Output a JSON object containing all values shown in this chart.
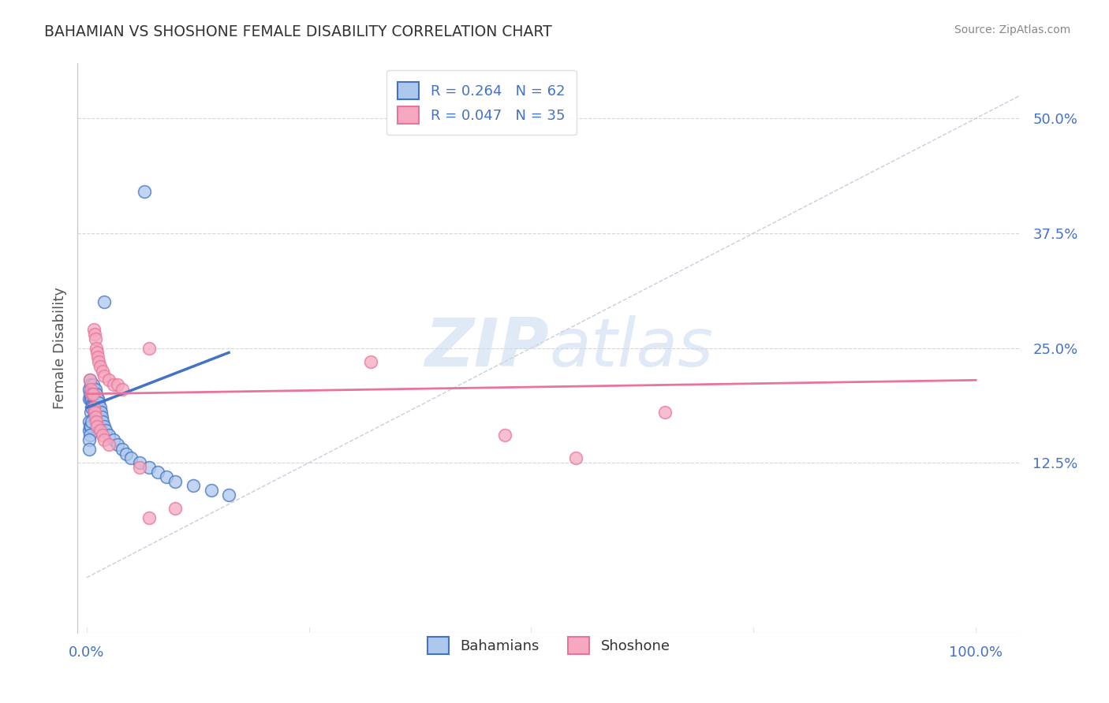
{
  "title": "BAHAMIAN VS SHOSHONE FEMALE DISABILITY CORRELATION CHART",
  "source_text": "Source: ZipAtlas.com",
  "ylabel": "Female Disability",
  "watermark_part1": "ZIP",
  "watermark_part2": "atlas",
  "legend_entries": [
    {
      "label": "Bahamians",
      "R": "0.264",
      "N": "62",
      "color": "#adc8ed",
      "line_color": "#4472c4"
    },
    {
      "label": "Shoshone",
      "R": "0.047",
      "N": "35",
      "color": "#f5a8c0",
      "line_color": "#e8749a"
    }
  ],
  "x_ticks": [
    0.0,
    0.25,
    0.5,
    0.75,
    1.0
  ],
  "x_tick_labels": [
    "0.0%",
    "",
    "",
    "",
    "100.0%"
  ],
  "y_ticks": [
    0.0,
    0.125,
    0.25,
    0.375,
    0.5
  ],
  "y_tick_labels": [
    "",
    "12.5%",
    "25.0%",
    "37.5%",
    "50.0%"
  ],
  "xlim": [
    -0.01,
    1.05
  ],
  "ylim": [
    -0.06,
    0.56
  ],
  "blue_scatter": [
    [
      0.003,
      0.205
    ],
    [
      0.003,
      0.195
    ],
    [
      0.004,
      0.215
    ],
    [
      0.004,
      0.2
    ],
    [
      0.005,
      0.21
    ],
    [
      0.005,
      0.195
    ],
    [
      0.005,
      0.18
    ],
    [
      0.006,
      0.205
    ],
    [
      0.006,
      0.195
    ],
    [
      0.006,
      0.185
    ],
    [
      0.007,
      0.21
    ],
    [
      0.007,
      0.2
    ],
    [
      0.007,
      0.19
    ],
    [
      0.008,
      0.205
    ],
    [
      0.008,
      0.195
    ],
    [
      0.008,
      0.185
    ],
    [
      0.008,
      0.175
    ],
    [
      0.009,
      0.2
    ],
    [
      0.009,
      0.19
    ],
    [
      0.009,
      0.18
    ],
    [
      0.01,
      0.205
    ],
    [
      0.01,
      0.195
    ],
    [
      0.01,
      0.185
    ],
    [
      0.01,
      0.175
    ],
    [
      0.011,
      0.2
    ],
    [
      0.011,
      0.19
    ],
    [
      0.012,
      0.195
    ],
    [
      0.012,
      0.185
    ],
    [
      0.013,
      0.195
    ],
    [
      0.013,
      0.185
    ],
    [
      0.014,
      0.19
    ],
    [
      0.014,
      0.18
    ],
    [
      0.015,
      0.185
    ],
    [
      0.016,
      0.18
    ],
    [
      0.017,
      0.175
    ],
    [
      0.018,
      0.17
    ],
    [
      0.02,
      0.165
    ],
    [
      0.022,
      0.16
    ],
    [
      0.025,
      0.155
    ],
    [
      0.03,
      0.15
    ],
    [
      0.035,
      0.145
    ],
    [
      0.04,
      0.14
    ],
    [
      0.045,
      0.135
    ],
    [
      0.05,
      0.13
    ],
    [
      0.06,
      0.125
    ],
    [
      0.07,
      0.12
    ],
    [
      0.08,
      0.115
    ],
    [
      0.09,
      0.11
    ],
    [
      0.1,
      0.105
    ],
    [
      0.12,
      0.1
    ],
    [
      0.14,
      0.095
    ],
    [
      0.16,
      0.09
    ],
    [
      0.003,
      0.17
    ],
    [
      0.003,
      0.16
    ],
    [
      0.004,
      0.165
    ],
    [
      0.005,
      0.165
    ],
    [
      0.006,
      0.17
    ],
    [
      0.004,
      0.155
    ],
    [
      0.003,
      0.15
    ],
    [
      0.003,
      0.14
    ],
    [
      0.065,
      0.42
    ],
    [
      0.02,
      0.3
    ]
  ],
  "pink_scatter": [
    [
      0.004,
      0.215
    ],
    [
      0.005,
      0.205
    ],
    [
      0.006,
      0.2
    ],
    [
      0.007,
      0.2
    ],
    [
      0.008,
      0.27
    ],
    [
      0.009,
      0.265
    ],
    [
      0.01,
      0.26
    ],
    [
      0.011,
      0.25
    ],
    [
      0.012,
      0.245
    ],
    [
      0.013,
      0.24
    ],
    [
      0.014,
      0.235
    ],
    [
      0.015,
      0.23
    ],
    [
      0.018,
      0.225
    ],
    [
      0.02,
      0.22
    ],
    [
      0.025,
      0.215
    ],
    [
      0.03,
      0.21
    ],
    [
      0.035,
      0.21
    ],
    [
      0.04,
      0.205
    ],
    [
      0.008,
      0.185
    ],
    [
      0.009,
      0.18
    ],
    [
      0.01,
      0.175
    ],
    [
      0.011,
      0.17
    ],
    [
      0.012,
      0.165
    ],
    [
      0.015,
      0.16
    ],
    [
      0.018,
      0.155
    ],
    [
      0.02,
      0.15
    ],
    [
      0.025,
      0.145
    ],
    [
      0.07,
      0.25
    ],
    [
      0.32,
      0.235
    ],
    [
      0.47,
      0.155
    ],
    [
      0.55,
      0.13
    ],
    [
      0.65,
      0.18
    ],
    [
      0.06,
      0.12
    ],
    [
      0.07,
      0.065
    ],
    [
      0.1,
      0.075
    ]
  ],
  "blue_line": [
    [
      0.0,
      0.185
    ],
    [
      0.16,
      0.245
    ]
  ],
  "pink_line": [
    [
      0.0,
      0.2
    ],
    [
      1.0,
      0.215
    ]
  ],
  "dash_line": [
    [
      0.0,
      0.0
    ],
    [
      1.05,
      0.525
    ]
  ],
  "background_color": "#ffffff",
  "grid_color": "#cccccc",
  "title_color": "#333333",
  "axis_label_color": "#555555",
  "tick_color": "#4472c4"
}
